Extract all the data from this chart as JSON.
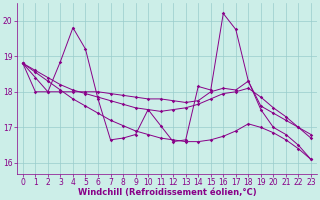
{
  "background_color": "#cceee8",
  "grid_color": "#99cccc",
  "line_color": "#880088",
  "xlabel": "Windchill (Refroidissement éolien,°C)",
  "ylim": [
    15.7,
    20.5
  ],
  "xlim": [
    -0.5,
    23.5
  ],
  "yticks": [
    16,
    17,
    18,
    19,
    20
  ],
  "xticks": [
    0,
    1,
    2,
    3,
    4,
    5,
    6,
    7,
    8,
    9,
    10,
    11,
    12,
    13,
    14,
    15,
    16,
    17,
    18,
    19,
    20,
    21,
    22,
    23
  ],
  "lines": [
    {
      "x": [
        0,
        1,
        2,
        3,
        4,
        5,
        6,
        7,
        8,
        9,
        10,
        11,
        12,
        13,
        14,
        15,
        16,
        17,
        18,
        19,
        20,
        21,
        22,
        23
      ],
      "y": [
        18.8,
        18.4,
        18.0,
        18.85,
        19.8,
        19.2,
        17.8,
        16.65,
        16.7,
        16.8,
        17.5,
        17.05,
        16.6,
        16.65,
        18.15,
        18.05,
        20.2,
        19.75,
        18.3,
        17.5,
        17.0,
        16.8,
        16.5,
        16.1
      ]
    },
    {
      "x": [
        0,
        1,
        2,
        3,
        4,
        5,
        6,
        7,
        8,
        9,
        10,
        11,
        12,
        13,
        14,
        15,
        16,
        17,
        18,
        19,
        20,
        21,
        22,
        23
      ],
      "y": [
        18.8,
        18.0,
        18.0,
        18.0,
        18.0,
        18.0,
        18.0,
        17.95,
        17.9,
        17.85,
        17.8,
        17.8,
        17.75,
        17.7,
        17.75,
        18.0,
        18.1,
        18.05,
        18.3,
        17.6,
        17.4,
        17.2,
        17.0,
        16.8
      ]
    },
    {
      "x": [
        0,
        1,
        2,
        3,
        4,
        5,
        6,
        7,
        8,
        9,
        10,
        11,
        12,
        13,
        14,
        15,
        16,
        17,
        18,
        19,
        20,
        21,
        22,
        23
      ],
      "y": [
        18.8,
        18.55,
        18.3,
        18.05,
        17.8,
        17.6,
        17.4,
        17.2,
        17.05,
        16.9,
        16.8,
        16.7,
        16.65,
        16.6,
        16.6,
        16.65,
        16.75,
        16.9,
        17.1,
        17.0,
        16.85,
        16.65,
        16.4,
        16.1
      ]
    },
    {
      "x": [
        0,
        1,
        2,
        3,
        4,
        5,
        6,
        7,
        8,
        9,
        10,
        11,
        12,
        13,
        14,
        15,
        16,
        17,
        18,
        19,
        20,
        21,
        22,
        23
      ],
      "y": [
        18.8,
        18.6,
        18.4,
        18.2,
        18.05,
        17.95,
        17.85,
        17.75,
        17.65,
        17.55,
        17.5,
        17.45,
        17.5,
        17.55,
        17.65,
        17.8,
        17.95,
        18.0,
        18.1,
        17.85,
        17.55,
        17.3,
        17.0,
        16.7
      ]
    }
  ]
}
